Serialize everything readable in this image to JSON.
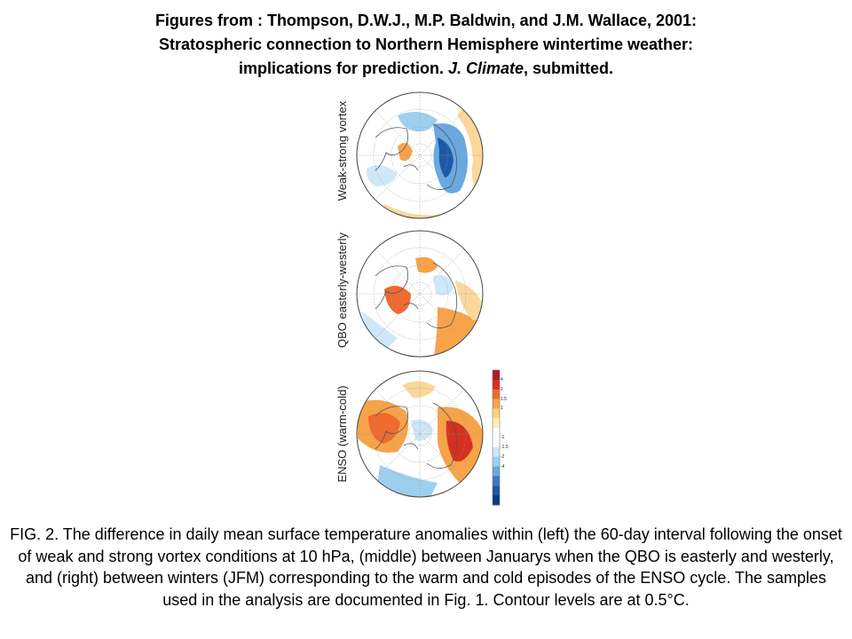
{
  "header": {
    "line1": "Figures from : Thompson, D.W.J., M.P. Baldwin, and J.M. Wallace, 2001:",
    "line2": "Stratospheric connection to Northern Hemisphere wintertime weather:",
    "line3_pre": "implications for prediction. ",
    "line3_journal": "J. Climate",
    "line3_post": ", submitted."
  },
  "panels": [
    {
      "label": "Weak-strong vortex"
    },
    {
      "label": "QBO easterly-westerly"
    },
    {
      "label": "ENSO (warm-cold)"
    }
  ],
  "colorbar": {
    "ticks": [
      "4",
      "2",
      "1.5",
      "1",
      "-1",
      "-1.5",
      "-2",
      "-4"
    ],
    "colors": [
      "#b2182b",
      "#d6301f",
      "#ef6a2e",
      "#f7a34a",
      "#fcd27a",
      "#fff0b8",
      "#ffffff",
      "#ffffff",
      "#cfe8f7",
      "#9fcfef",
      "#6aa9df",
      "#3b7cc4",
      "#1f58a8",
      "#0b3b87"
    ]
  },
  "caption": "FIG. 2. The difference in daily mean surface temperature anomalies within (left) the 60-day interval following the onset of weak and strong vortex conditions at 10 hPa, (middle) between Januarys when the QBO is easterly and westerly, and (right) between winters (JFM) corresponding to the warm and cold episodes of the ENSO cycle. The samples used in the analysis are documented in Fig. 1. Contour levels are at 0.5°C."
}
